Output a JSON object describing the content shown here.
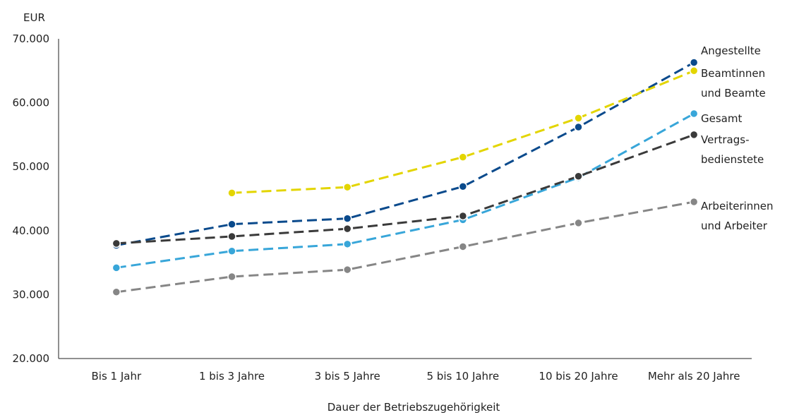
{
  "chart_data": {
    "type": "line",
    "unit_label": "EUR",
    "xlabel": "Dauer der Betriebszugehörigkeit",
    "ylabel": "",
    "categories": [
      "Bis 1 Jahr",
      "1 bis 3 Jahre",
      "3 bis 5 Jahre",
      "5 bis 10 Jahre",
      "10 bis 20 Jahre",
      "Mehr als 20 Jahre"
    ],
    "ylim": [
      20000,
      70000
    ],
    "yticks": [
      20000,
      30000,
      40000,
      50000,
      60000,
      70000
    ],
    "ytick_labels": [
      "20.000",
      "30.000",
      "40.000",
      "50.000",
      "60.000",
      "70.000"
    ],
    "grid": false,
    "legend_position": "right, inline at line ends",
    "series": [
      {
        "name": "Angestellte",
        "label_lines": [
          "Angestellte"
        ],
        "color": "#0a4a8c",
        "values": [
          37700,
          41000,
          41900,
          46900,
          56200,
          66300
        ]
      },
      {
        "name": "Beamtinnen und Beamte",
        "label_lines": [
          "Beamtinnen",
          "und Beamte"
        ],
        "color": "#e3d500",
        "values": [
          null,
          45900,
          46800,
          51500,
          57600,
          65000
        ]
      },
      {
        "name": "Gesamt",
        "label_lines": [
          "Gesamt"
        ],
        "color": "#38a6d9",
        "values": [
          34200,
          36800,
          37900,
          41700,
          48300,
          58300
        ]
      },
      {
        "name": "Vertragsbedienstete",
        "label_lines": [
          "Vertrags-",
          "bedienstete"
        ],
        "color": "#3a3a3a",
        "values": [
          38000,
          39100,
          40300,
          42300,
          48500,
          55000
        ]
      },
      {
        "name": "Arbeiterinnen und Arbeiter",
        "label_lines": [
          "Arbeiterinnen",
          "und Arbeiter"
        ],
        "color": "#868686",
        "values": [
          30400,
          32800,
          33900,
          37500,
          41200,
          44500
        ]
      }
    ]
  }
}
